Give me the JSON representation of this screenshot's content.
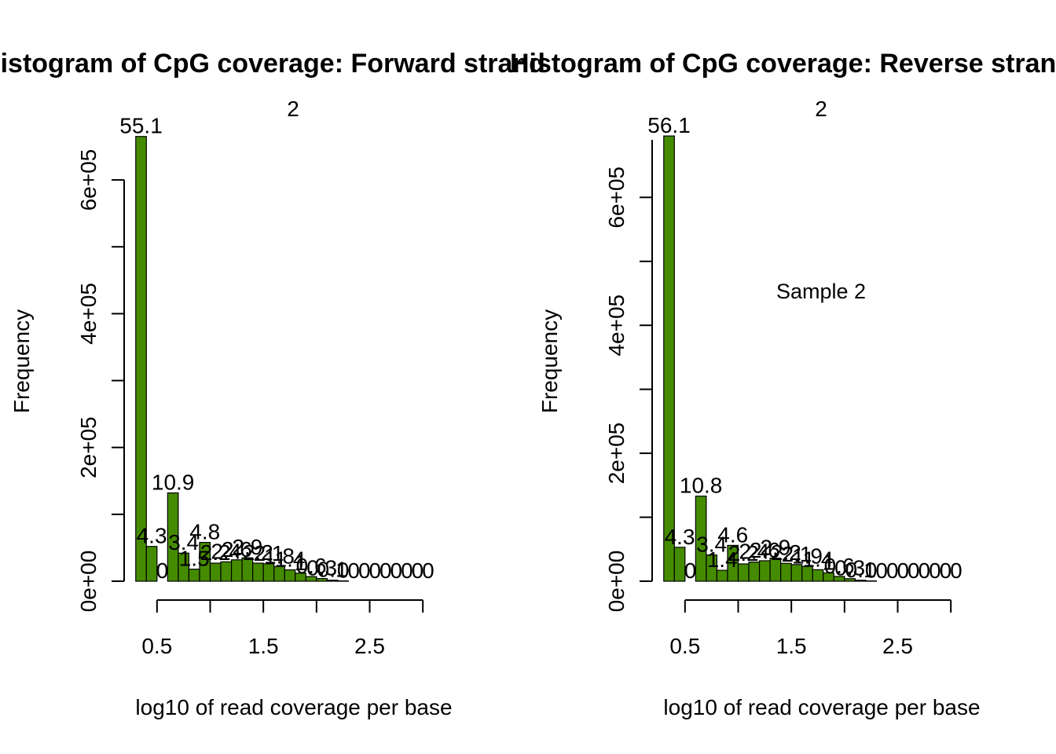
{
  "chart_data": [
    {
      "type": "bar",
      "title": "Histogram of CpG coverage: Forward strand",
      "subtitle": "2",
      "xlabel": "log10 of read coverage per base",
      "ylabel": "Frequency",
      "annotation": "",
      "bar_color": "#458B00",
      "xlim": [
        0.25,
        3.25
      ],
      "ylim": [
        0,
        660000
      ],
      "x_ticks": [
        0.5,
        1.0,
        1.5,
        2.0,
        2.5,
        3.0
      ],
      "x_tick_labels": [
        "0.5",
        "",
        "1.5",
        "",
        "2.5",
        ""
      ],
      "y_ticks": [
        0,
        100000,
        200000,
        300000,
        400000,
        500000,
        600000
      ],
      "y_tick_labels": [
        "0e+00",
        "",
        "2e+05",
        "",
        "4e+05",
        "",
        "6e+05"
      ],
      "bin_width": 0.1,
      "bin_starts": [
        0.3,
        0.4,
        0.5,
        0.6,
        0.7,
        0.8,
        0.9,
        1.0,
        1.1,
        1.2,
        1.3,
        1.4,
        1.5,
        1.6,
        1.7,
        1.8,
        1.9,
        2.0,
        2.1,
        2.2,
        2.3,
        2.4,
        2.5,
        2.6,
        2.7,
        2.8,
        2.9,
        3.0
      ],
      "values": [
        665000,
        52000,
        0,
        132000,
        42000,
        18000,
        58000,
        27000,
        29000,
        32000,
        35000,
        27000,
        26000,
        22000,
        17000,
        12000,
        7000,
        4000,
        1500,
        500,
        0,
        0,
        0,
        0,
        0,
        0,
        0,
        0
      ],
      "data_labels": [
        "55.1",
        "4.3",
        "0",
        "10.9",
        "3.4",
        "1.5",
        "4.8",
        "2.2",
        "2.4",
        "2.6",
        "2.9",
        "2.2",
        "2.1",
        "1.8",
        "1.4",
        "1",
        "0.6",
        "0.3",
        "0.1",
        "0",
        "0",
        "0",
        "0",
        "0",
        "0",
        "0",
        "0",
        "0"
      ]
    },
    {
      "type": "bar",
      "title": "Histogram of CpG coverage: Reverse strand",
      "subtitle": "2",
      "xlabel": "log10 of read coverage per base",
      "ylabel": "Frequency",
      "annotation": "Sample 2",
      "bar_color": "#458B00",
      "xlim": [
        0.25,
        3.25
      ],
      "ylim": [
        0,
        690000
      ],
      "x_ticks": [
        0.5,
        1.0,
        1.5,
        2.0,
        2.5,
        3.0
      ],
      "x_tick_labels": [
        "0.5",
        "",
        "1.5",
        "",
        "2.5",
        ""
      ],
      "y_ticks": [
        0,
        100000,
        200000,
        300000,
        400000,
        500000,
        600000,
        700000
      ],
      "y_tick_labels": [
        "0e+00",
        "",
        "2e+05",
        "",
        "4e+05",
        "",
        "6e+05",
        ""
      ],
      "bin_width": 0.1,
      "bin_starts": [
        0.3,
        0.4,
        0.5,
        0.6,
        0.7,
        0.8,
        0.9,
        1.0,
        1.1,
        1.2,
        1.3,
        1.4,
        1.5,
        1.6,
        1.7,
        1.8,
        1.9,
        2.0,
        2.1,
        2.2,
        2.3,
        2.4,
        2.5,
        2.6,
        2.7,
        2.8,
        2.9,
        3.0
      ],
      "values": [
        696000,
        53000,
        0,
        133000,
        41000,
        17000,
        56000,
        27000,
        30000,
        32000,
        36000,
        28000,
        26000,
        23000,
        18000,
        13000,
        7500,
        4000,
        1500,
        500,
        0,
        0,
        0,
        0,
        0,
        0,
        0,
        0
      ],
      "data_labels": [
        "56.1",
        "4.3",
        "0",
        "10.8",
        "3.4",
        "1.4",
        "4.6",
        "2.2",
        "2.4",
        "2.6",
        "2.9",
        "2.2",
        "2.1",
        "1.9",
        "1.4",
        "1",
        "0.6",
        "0.3",
        "0.1",
        "0",
        "0",
        "0",
        "0",
        "0",
        "0",
        "0",
        "0",
        "0"
      ]
    }
  ]
}
